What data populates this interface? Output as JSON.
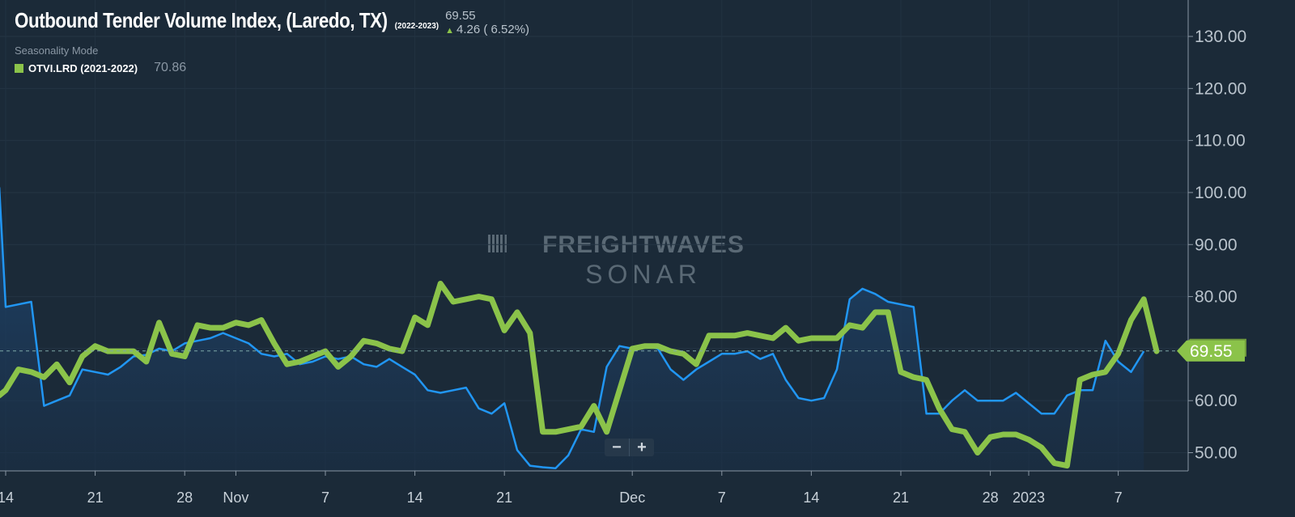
{
  "header": {
    "title": "Outbound Tender Volume Index, (Laredo, TX)",
    "period": "(2022-2023)",
    "last_value": "69.55",
    "change": "4.26 ( 6.52%)",
    "mode_label": "Seasonality Mode",
    "compare_label": "OTVI.LRD (2021-2022)",
    "compare_value": "70.86"
  },
  "watermark": {
    "line1": "FREIGHTWAVES",
    "line2": "SONAR"
  },
  "zoom": {
    "out_label": "−",
    "in_label": "+"
  },
  "colors": {
    "background": "#1b2a38",
    "current_line": "#2196f3",
    "current_fill": "#1f3a5c",
    "compare_line": "#8bc34a"
  },
  "chart_data": {
    "type": "line",
    "title": "Outbound Tender Volume Index, (Laredo, TX)",
    "x_tick_labels": [
      "14",
      "21",
      "28",
      "Nov",
      "7",
      "14",
      "21",
      "Dec",
      "7",
      "14",
      "21",
      "28",
      "2023",
      "7"
    ],
    "x_tick_days": [
      0,
      7,
      14,
      18,
      25,
      32,
      39,
      49,
      56,
      63,
      70,
      77,
      80,
      87
    ],
    "y_tick_labels": [
      "50.00",
      "60.00",
      "70.00",
      "80.00",
      "90.00",
      "100.00",
      "110.00",
      "120.00",
      "130.00"
    ],
    "y_ticks": [
      50,
      60,
      70,
      80,
      90,
      100,
      110,
      120,
      130
    ],
    "ylim": [
      46.5,
      137
    ],
    "reference_line": 69.55,
    "last_value_label": "69.55",
    "hidden_value_label": "70.86",
    "series": [
      {
        "name": "Outbound Tender Volume Index, (Laredo, TX) (2022-2023)",
        "style": "area",
        "points": [
          [
            -0.5,
            101
          ],
          [
            0,
            78
          ],
          [
            1,
            78.5
          ],
          [
            2,
            79
          ],
          [
            3,
            59
          ],
          [
            4,
            60
          ],
          [
            5,
            61
          ],
          [
            6,
            66
          ],
          [
            7,
            65.5
          ],
          [
            8,
            65
          ],
          [
            9,
            66.5
          ],
          [
            10,
            68.5
          ],
          [
            11,
            68.8
          ],
          [
            12,
            70
          ],
          [
            13,
            69.5
          ],
          [
            14,
            71
          ],
          [
            15,
            71.5
          ],
          [
            16,
            72
          ],
          [
            17,
            73
          ],
          [
            18,
            72
          ],
          [
            19,
            71
          ],
          [
            20,
            69
          ],
          [
            21,
            68.5
          ],
          [
            22,
            69
          ],
          [
            23,
            67
          ],
          [
            24,
            67.5
          ],
          [
            25,
            68.5
          ],
          [
            26,
            68
          ],
          [
            27,
            68.5
          ],
          [
            28,
            67
          ],
          [
            29,
            66.5
          ],
          [
            30,
            68
          ],
          [
            31,
            66.5
          ],
          [
            32,
            65
          ],
          [
            33,
            62
          ],
          [
            34,
            61.5
          ],
          [
            35,
            62
          ],
          [
            36,
            62.5
          ],
          [
            37,
            58.5
          ],
          [
            38,
            57.5
          ],
          [
            39,
            59.5
          ],
          [
            40,
            50.5
          ],
          [
            41,
            47.5
          ],
          [
            42,
            47.2
          ],
          [
            43,
            47
          ],
          [
            44,
            49.5
          ],
          [
            45,
            54.5
          ],
          [
            46,
            54
          ],
          [
            47,
            66.5
          ],
          [
            48,
            70.5
          ],
          [
            49,
            70
          ],
          [
            50,
            70.5
          ],
          [
            51,
            70
          ],
          [
            52,
            66
          ],
          [
            53,
            64
          ],
          [
            54,
            66
          ],
          [
            55,
            67.5
          ],
          [
            56,
            69
          ],
          [
            57,
            69
          ],
          [
            58,
            69.5
          ],
          [
            59,
            68
          ],
          [
            60,
            69
          ],
          [
            61,
            64
          ],
          [
            62,
            60.5
          ],
          [
            63,
            60
          ],
          [
            64,
            60.5
          ],
          [
            65,
            66
          ],
          [
            66,
            79.5
          ],
          [
            67,
            81.5
          ],
          [
            68,
            80.5
          ],
          [
            69,
            79
          ],
          [
            70,
            78.5
          ],
          [
            71,
            78
          ],
          [
            72,
            57.5
          ],
          [
            73,
            57.5
          ],
          [
            74,
            60
          ],
          [
            75,
            62
          ],
          [
            76,
            60
          ],
          [
            77,
            60
          ],
          [
            78,
            60
          ],
          [
            79,
            61.5
          ],
          [
            80,
            59.5
          ],
          [
            81,
            57.5
          ],
          [
            82,
            57.5
          ],
          [
            83,
            61
          ],
          [
            84,
            62
          ],
          [
            85,
            62
          ],
          [
            86,
            71.5
          ],
          [
            87,
            67.5
          ],
          [
            88,
            65.5
          ],
          [
            89,
            69.5
          ]
        ]
      },
      {
        "name": "OTVI.LRD (2021-2022)",
        "style": "line",
        "points": [
          [
            -0.5,
            61
          ],
          [
            0,
            62
          ],
          [
            1,
            66
          ],
          [
            2,
            65.5
          ],
          [
            3,
            64.5
          ],
          [
            4,
            67
          ],
          [
            5,
            63.5
          ],
          [
            6,
            68.5
          ],
          [
            7,
            70.5
          ],
          [
            8,
            69.5
          ],
          [
            9,
            69.5
          ],
          [
            10,
            69.5
          ],
          [
            11,
            67.5
          ],
          [
            12,
            75
          ],
          [
            13,
            69
          ],
          [
            14,
            68.5
          ],
          [
            15,
            74.5
          ],
          [
            16,
            74
          ],
          [
            17,
            74
          ],
          [
            18,
            75
          ],
          [
            19,
            74.5
          ],
          [
            20,
            75.5
          ],
          [
            21,
            71
          ],
          [
            22,
            67
          ],
          [
            23,
            67.5
          ],
          [
            24,
            68.5
          ],
          [
            25,
            69.5
          ],
          [
            26,
            66.5
          ],
          [
            27,
            68.5
          ],
          [
            28,
            71.5
          ],
          [
            29,
            71
          ],
          [
            30,
            70
          ],
          [
            31,
            69.5
          ],
          [
            32,
            76
          ],
          [
            33,
            74.5
          ],
          [
            34,
            82.5
          ],
          [
            35,
            79
          ],
          [
            36,
            79.5
          ],
          [
            37,
            80
          ],
          [
            38,
            79.5
          ],
          [
            39,
            73.5
          ],
          [
            40,
            77
          ],
          [
            41,
            73
          ],
          [
            42,
            54
          ],
          [
            43,
            54
          ],
          [
            44,
            54.5
          ],
          [
            45,
            55
          ],
          [
            46,
            59
          ],
          [
            47,
            54
          ],
          [
            48,
            62
          ],
          [
            49,
            70
          ],
          [
            50,
            70.5
          ],
          [
            51,
            70.5
          ],
          [
            52,
            69.5
          ],
          [
            53,
            69
          ],
          [
            54,
            67
          ],
          [
            55,
            72.5
          ],
          [
            56,
            72.5
          ],
          [
            57,
            72.5
          ],
          [
            58,
            73
          ],
          [
            59,
            72.5
          ],
          [
            60,
            72
          ],
          [
            61,
            74
          ],
          [
            62,
            71.5
          ],
          [
            63,
            72
          ],
          [
            64,
            72
          ],
          [
            65,
            72
          ],
          [
            66,
            74.5
          ],
          [
            67,
            74
          ],
          [
            68,
            77
          ],
          [
            69,
            77
          ],
          [
            70,
            65.5
          ],
          [
            71,
            64.5
          ],
          [
            72,
            64
          ],
          [
            73,
            58.5
          ],
          [
            74,
            54.5
          ],
          [
            75,
            54
          ],
          [
            76,
            50
          ],
          [
            77,
            53
          ],
          [
            78,
            53.5
          ],
          [
            79,
            53.5
          ],
          [
            80,
            52.5
          ],
          [
            81,
            51
          ],
          [
            82,
            48
          ],
          [
            83,
            47.5
          ],
          [
            84,
            64
          ],
          [
            85,
            65
          ],
          [
            86,
            65.5
          ],
          [
            87,
            69
          ],
          [
            88,
            75.5
          ],
          [
            89,
            79.5
          ],
          [
            90,
            69.5
          ]
        ]
      }
    ]
  }
}
